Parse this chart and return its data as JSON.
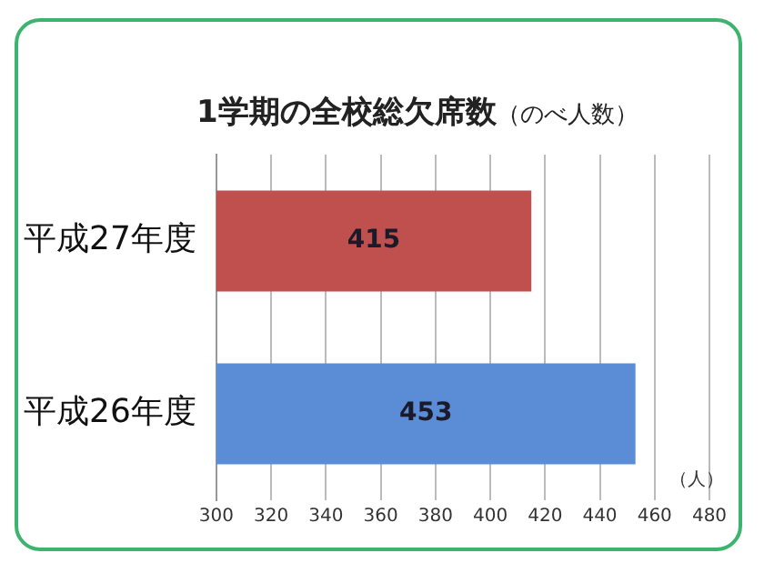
{
  "chart_data": {
    "type": "bar",
    "orientation": "horizontal",
    "title": "1学期の全校総欠席数",
    "subtitle": "（のべ人数）",
    "xlabel": "（人）",
    "categories": [
      "平成27年度",
      "平成26年度"
    ],
    "values": [
      415,
      453
    ],
    "colors": [
      "#c0504d",
      "#5b8dd6"
    ],
    "xlim": [
      300,
      480
    ],
    "xticks": [
      300,
      320,
      340,
      360,
      380,
      400,
      420,
      440,
      460,
      480
    ],
    "grid": "x",
    "data_labels": true,
    "legend": false
  }
}
